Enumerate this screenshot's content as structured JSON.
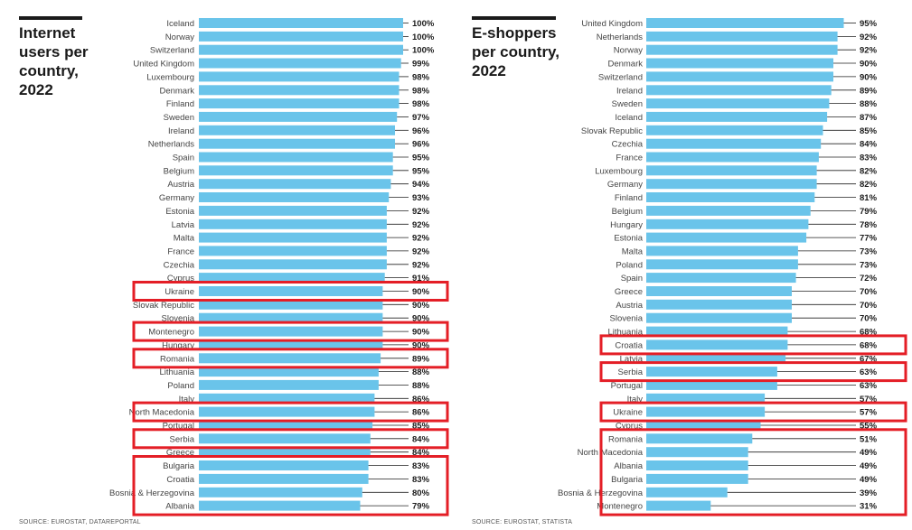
{
  "chart_data": [
    {
      "type": "bar",
      "orientation": "horizontal",
      "title": "Internet\nusers per\ncountry,\n2022",
      "source": "SOURCE: EUROSTAT, DATAREPORTAL",
      "value_suffix": "%",
      "xlim": [
        0,
        100
      ],
      "colors": {
        "bar": "#6ac4ea",
        "highlight": "#e41e26",
        "text": "#1a1a1a",
        "label": "#444444"
      },
      "categories": [
        "Iceland",
        "Norway",
        "Switzerland",
        "United Kingdom",
        "Luxembourg",
        "Denmark",
        "Finland",
        "Sweden",
        "Ireland",
        "Netherlands",
        "Spain",
        "Belgium",
        "Austria",
        "Germany",
        "Estonia",
        "Latvia",
        "Malta",
        "France",
        "Czechia",
        "Cyprus",
        "Ukraine",
        "Slovak Republic",
        "Slovenia",
        "Montenegro",
        "Hungary",
        "Romania",
        "Lithuania",
        "Poland",
        "Italy",
        "North Macedonia",
        "Portugal",
        "Serbia",
        "Greece",
        "Bulgaria",
        "Croatia",
        "Bosnia & Herzegovina",
        "Albania"
      ],
      "values": [
        100,
        100,
        100,
        99,
        98,
        98,
        98,
        97,
        96,
        96,
        95,
        95,
        94,
        93,
        92,
        92,
        92,
        92,
        92,
        91,
        90,
        90,
        90,
        90,
        90,
        89,
        88,
        88,
        86,
        86,
        85,
        84,
        84,
        83,
        83,
        80,
        79
      ],
      "highlighted": [
        "Ukraine",
        "Montenegro",
        "Romania",
        "North Macedonia",
        "Serbia",
        "Bulgaria",
        "Croatia",
        "Bosnia & Herzegovina",
        "Albania"
      ]
    },
    {
      "type": "bar",
      "orientation": "horizontal",
      "title": "E-shoppers\nper country,\n2022",
      "source": "SOURCE: EUROSTAT, STATISTA",
      "value_suffix": "%",
      "xlim": [
        0,
        100
      ],
      "colors": {
        "bar": "#6ac4ea",
        "highlight": "#e41e26",
        "text": "#1a1a1a",
        "label": "#444444"
      },
      "categories": [
        "United Kingdom",
        "Netherlands",
        "Norway",
        "Denmark",
        "Switzerland",
        "Ireland",
        "Sweden",
        "Iceland",
        "Slovak Republic",
        "Czechia",
        "France",
        "Luxembourg",
        "Germany",
        "Finland",
        "Belgium",
        "Hungary",
        "Estonia",
        "Malta",
        "Poland",
        "Spain",
        "Greece",
        "Austria",
        "Slovenia",
        "Lithuania",
        "Croatia",
        "Latvia",
        "Serbia",
        "Portugal",
        "Italy",
        "Ukraine",
        "Cyprus",
        "Romania",
        "North Macedonia",
        "Albania",
        "Bulgaria",
        "Bosnia & Herzegovina",
        "Montenegro"
      ],
      "values": [
        95,
        92,
        92,
        90,
        90,
        89,
        88,
        87,
        85,
        84,
        83,
        82,
        82,
        81,
        79,
        78,
        77,
        73,
        73,
        72,
        70,
        70,
        70,
        68,
        68,
        67,
        63,
        63,
        57,
        57,
        55,
        51,
        49,
        49,
        49,
        39,
        31
      ],
      "highlighted": [
        "Croatia",
        "Serbia",
        "Ukraine",
        "Romania",
        "North Macedonia",
        "Albania",
        "Bulgaria",
        "Bosnia & Herzegovina",
        "Montenegro"
      ]
    }
  ]
}
